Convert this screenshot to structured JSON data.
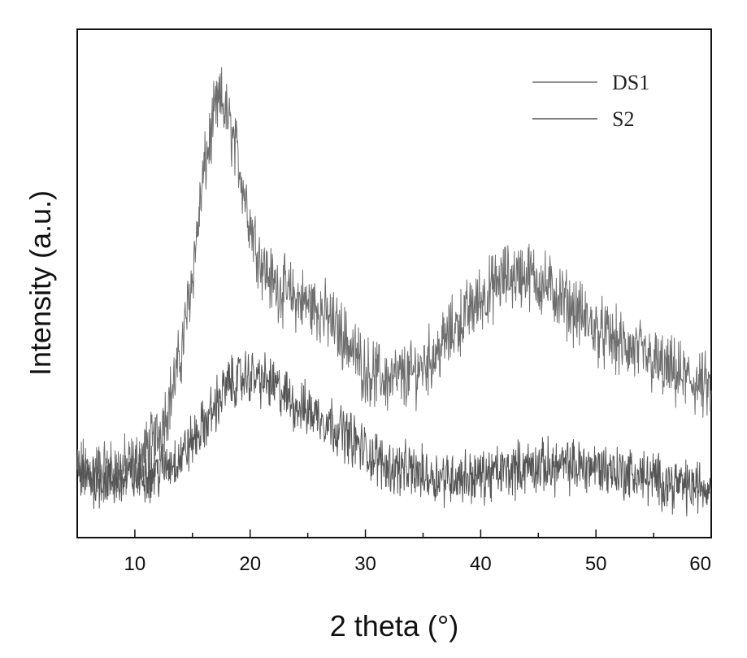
{
  "chart_data": {
    "type": "line",
    "xlabel": "2 theta (°)",
    "ylabel": "Intensity (a.u.)",
    "xlim": [
      5,
      60
    ],
    "ylim": [
      0,
      100
    ],
    "xticks": [
      10,
      20,
      30,
      40,
      50,
      60
    ],
    "yticks_visible": false,
    "legend_position": "top-right",
    "series": [
      {
        "name": "DS1",
        "color": "#6e6e6e",
        "noise": 5,
        "x": [
          5,
          8,
          10,
          12,
          13,
          14,
          15,
          16,
          17,
          17.5,
          18,
          19,
          20,
          21,
          22,
          24,
          26,
          28,
          30,
          32,
          34,
          36,
          38,
          40,
          42,
          44,
          46,
          48,
          50,
          52,
          54,
          56,
          58,
          60
        ],
        "values": [
          13,
          13,
          14,
          20,
          27,
          36,
          52,
          72,
          84,
          86,
          83,
          74,
          62,
          54,
          50,
          47,
          45,
          40,
          33,
          31,
          32,
          36,
          42,
          47,
          51,
          52,
          49,
          45,
          41,
          38,
          36,
          33,
          31,
          29
        ]
      },
      {
        "name": "S2",
        "color": "#555555",
        "noise": 4,
        "x": [
          5,
          8,
          10,
          12,
          14,
          16,
          18,
          20,
          22,
          24,
          26,
          28,
          30,
          32,
          34,
          36,
          38,
          40,
          42,
          44,
          46,
          48,
          50,
          52,
          54,
          56,
          58,
          60
        ],
        "values": [
          12,
          11,
          12,
          13,
          16,
          22,
          30,
          32,
          30,
          26,
          24,
          21,
          17,
          14,
          13,
          12,
          12,
          12,
          13,
          14,
          14,
          14,
          14,
          13,
          12,
          11,
          10,
          10
        ]
      }
    ]
  }
}
